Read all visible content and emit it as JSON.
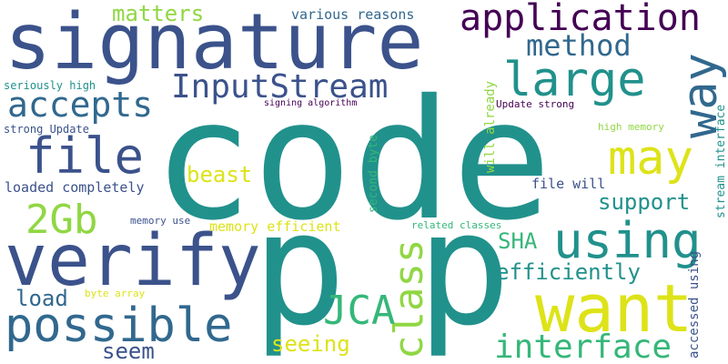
{
  "palette": {
    "purple": "#440154",
    "indigo": "#3b528b",
    "blue": "#31688e",
    "teal": "#21918c",
    "green": "#35b779",
    "lime": "#90d743",
    "yellow": "#dde318"
  },
  "words": {
    "code": "code",
    "p1": "p",
    "p2": "p",
    "signature": "signature",
    "verify": "verify",
    "want": "want",
    "application": "application",
    "possible": "possible",
    "using": "using",
    "large": "large",
    "way": "way",
    "may": "may",
    "file": "file",
    "interface": "interface",
    "accepts": "accepts",
    "inputstream": "InputStream",
    "method": "method",
    "class": "class",
    "jca": "JCA",
    "twogb": "2Gb",
    "efficiently": "efficiently",
    "support": "support",
    "matters": "matters",
    "load": "load",
    "seem": "seem",
    "seeing": "seeing",
    "beast": "beast",
    "sha": "SHA",
    "various_reasons": "various reasons",
    "memory_efficient": "memory efficient",
    "file_will": "file will",
    "loaded_completely": "loaded completely",
    "seriously_high": "seriously high",
    "strong_update": "strong Update",
    "signing_algorithm": "signing algorithm",
    "update_strong": "Update strong",
    "high_memory": "high memory",
    "memory_use": "memory use",
    "related_classes": "related classes",
    "byte_array": "byte array",
    "p_small": "p",
    "will_already": "will already",
    "second_byte": "second byte",
    "stream_interface": "stream interface",
    "accessed_using": "accessed using"
  }
}
